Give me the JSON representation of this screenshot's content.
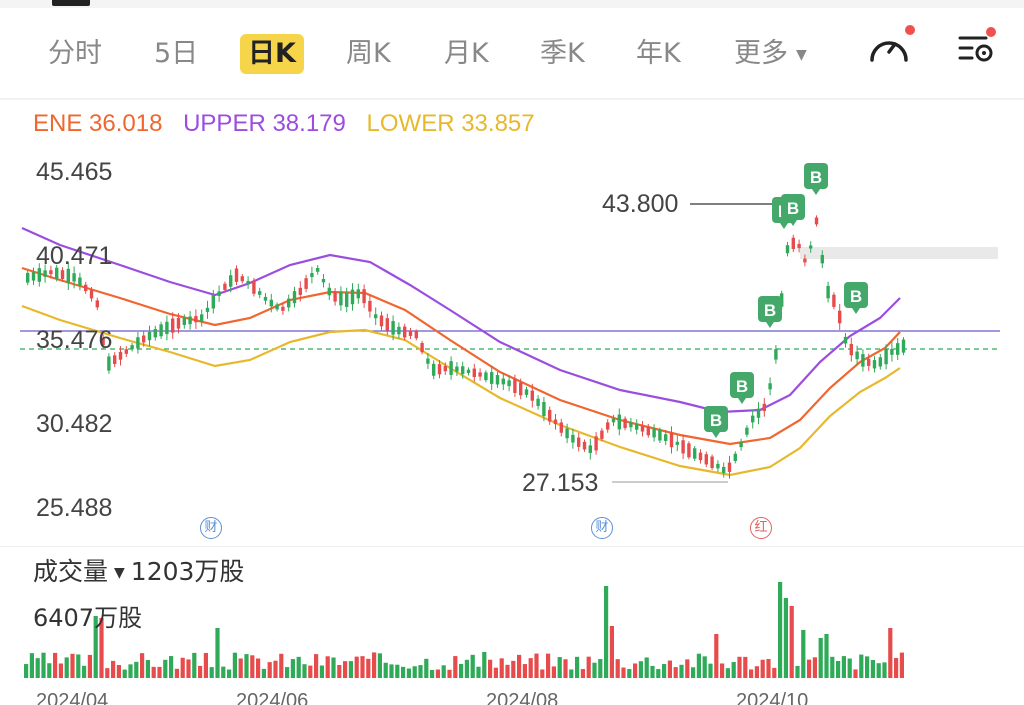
{
  "tabs": [
    {
      "label": "分时",
      "active": false
    },
    {
      "label": "5日",
      "active": false
    },
    {
      "label": "日K",
      "active": true
    },
    {
      "label": "周K",
      "active": false
    },
    {
      "label": "月K",
      "active": false
    },
    {
      "label": "季K",
      "active": false
    },
    {
      "label": "年K",
      "active": false
    },
    {
      "label": "更多",
      "active": false,
      "dropdown": true
    }
  ],
  "toolbar": {
    "icons": [
      "speedometer-icon",
      "settings-sliders-icon"
    ],
    "notification_color": "#f15050"
  },
  "indicator": {
    "ene": "ENE 36.018",
    "upper": "UPPER 38.179",
    "lower": "LOWER 33.857",
    "colors": {
      "ene": "#f0662e",
      "upper": "#9b4de0",
      "lower": "#e8b82c"
    }
  },
  "price_axis": [
    "45.465",
    "40.471",
    "35.476",
    "30.482",
    "25.488"
  ],
  "annotations": {
    "high": "43.800",
    "low": "27.153"
  },
  "signals": {
    "label": "B",
    "color": "#43a86a",
    "count": 7
  },
  "event_markers": [
    {
      "label": "财",
      "type": "earnings"
    },
    {
      "label": "财",
      "type": "earnings"
    },
    {
      "label": "红",
      "type": "dividend"
    }
  ],
  "volume": {
    "title": "成交量",
    "current": "1203万股",
    "max_label": "6407万股"
  },
  "dates": [
    "2024/04",
    "2024/06",
    "2024/08",
    "2024/10"
  ],
  "colors": {
    "up": "#e74c4c",
    "down": "#2eaa58",
    "accent": "#f7d54a"
  },
  "chart_data": {
    "type": "candlestick",
    "y_ticks": [
      45.465,
      40.471,
      35.476,
      30.482,
      25.488
    ],
    "high_marker": 43.8,
    "low_marker": 27.153,
    "current_price": 36.018,
    "series": [
      {
        "name": "UPPER",
        "value": 38.179
      },
      {
        "name": "ENE",
        "value": 36.018
      },
      {
        "name": "LOWER",
        "value": 33.857
      }
    ]
  }
}
